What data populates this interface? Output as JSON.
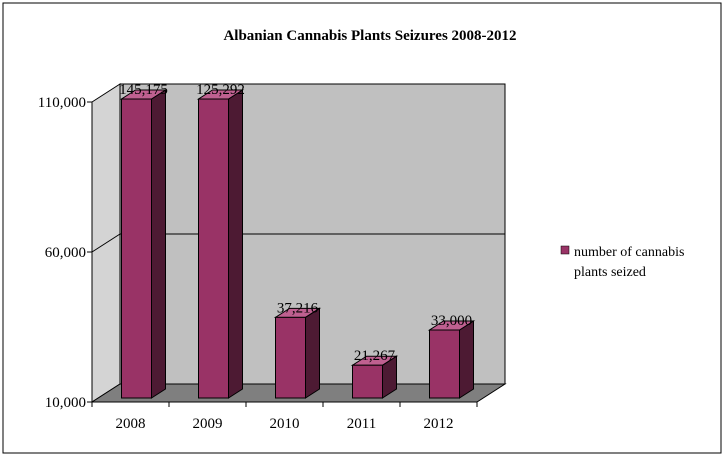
{
  "chart_data": {
    "type": "bar",
    "title": "Albanian Cannabis Plants Seizures 2008-2012",
    "xlabel": "",
    "ylabel": "",
    "categories": [
      "2008",
      "2009",
      "2010",
      "2011",
      "2012"
    ],
    "series": [
      {
        "name": "number of cannabis plants seized",
        "values": [
          145175,
          125292,
          37216,
          21267,
          33000
        ],
        "data_labels": [
          "145,175",
          "125,292",
          "37,216",
          "21,267",
          "33,000"
        ]
      }
    ],
    "ylim": [
      10000,
      110000
    ],
    "y_ticks": [
      "110,000",
      "60,000",
      "10,000"
    ],
    "y_tick_values": [
      110000,
      60000,
      10000
    ],
    "legend_lines": [
      "number of cannabis",
      "plants seized"
    ],
    "legend_position": "right",
    "grid": true,
    "colors": {
      "bar_front": "#993366",
      "bar_side": "#4d1a33",
      "bar_top": "#bf6090",
      "plot_back": "#c0c0c0",
      "plot_side": "#d4d4d4",
      "plot_floor": "#7f7f7f"
    }
  }
}
